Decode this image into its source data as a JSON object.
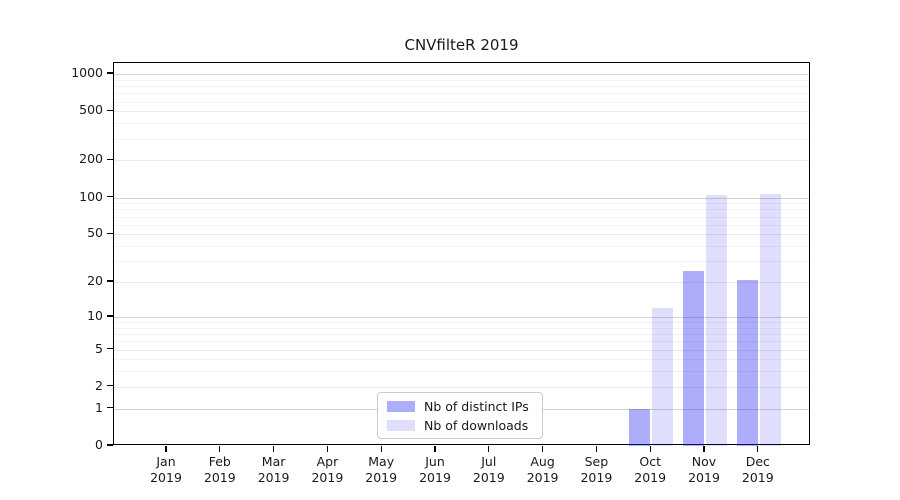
{
  "chart_data": {
    "type": "bar",
    "title": "CNVfilteR 2019",
    "y_scale": "log10(1+x)",
    "categories": [
      "Jan",
      "Feb",
      "Mar",
      "Apr",
      "May",
      "Jun",
      "Jul",
      "Aug",
      "Sep",
      "Oct",
      "Nov",
      "Dec"
    ],
    "category_year": "2019",
    "series": [
      {
        "key": "distinct-ips",
        "name": "Nb of distinct IPs",
        "color": "rgba(40,40,240,0.38)",
        "values": [
          0,
          0,
          0,
          0,
          0,
          0,
          0,
          0,
          0,
          1,
          25,
          21
        ]
      },
      {
        "key": "downloads",
        "name": "Nb of downloads",
        "color": "rgba(40,40,240,0.15)",
        "values": [
          0,
          0,
          0,
          0,
          0,
          0,
          0,
          0,
          0,
          12,
          104,
          106
        ]
      }
    ],
    "yticks": [
      0,
      1,
      2,
      5,
      10,
      20,
      50,
      100,
      200,
      500,
      1000
    ],
    "ylim": [
      0,
      1100
    ],
    "grid": "horizontal only, log major + minor",
    "legend_position": "inside bottom-center"
  },
  "colors": {
    "background": "#ffffff",
    "axis": "#000000",
    "text": "#1a1a1a",
    "grid_major": "#d4d4d4",
    "grid_mid": "#e9e9e9",
    "grid_minor": "#f2f2f2",
    "legend_border": "#cccccc",
    "bar_ips": "rgba(40,40,240,0.38)",
    "bar_downloads": "rgba(40,40,240,0.15)"
  }
}
